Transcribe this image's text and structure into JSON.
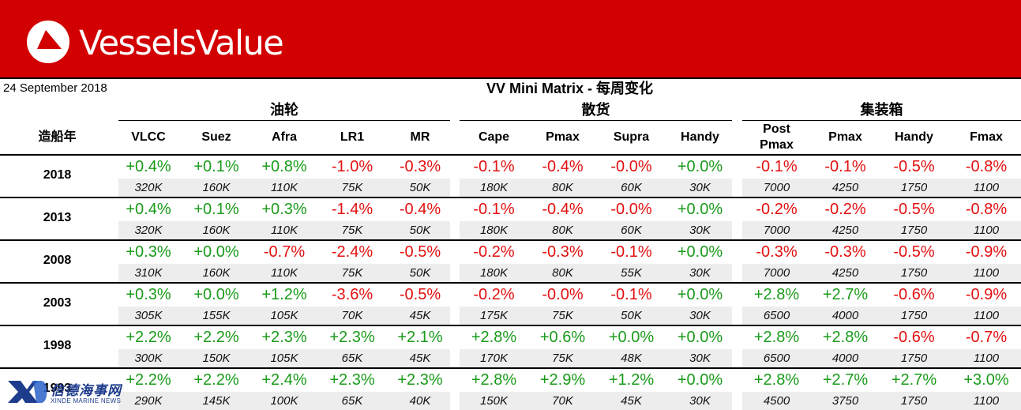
{
  "brand": {
    "name": "VesselsValue",
    "color": "#d20000"
  },
  "header": {
    "date": "24 September 2018",
    "title": "VV Mini Matrix - 每周变化"
  },
  "groups": [
    {
      "label": "油轮"
    },
    {
      "label": "散货"
    },
    {
      "label": "集装箱"
    }
  ],
  "year_header": "造船年",
  "columns": [
    "VLCC",
    "Suez",
    "Afra",
    "LR1",
    "MR",
    "Cape",
    "Pmax",
    "Supra",
    "Handy",
    "Post\nPmax",
    "Pmax",
    "Handy",
    "Fmax"
  ],
  "rows": [
    {
      "year": "2018",
      "pct": [
        "+0.4%",
        "+0.1%",
        "+0.8%",
        "-1.0%",
        "-0.3%",
        "-0.1%",
        "-0.4%",
        "-0.0%",
        "+0.0%",
        "-0.1%",
        "-0.1%",
        "-0.5%",
        "-0.8%"
      ],
      "size": [
        "320K",
        "160K",
        "110K",
        "75K",
        "50K",
        "180K",
        "80K",
        "60K",
        "30K",
        "7000",
        "4250",
        "1750",
        "1100"
      ]
    },
    {
      "year": "2013",
      "pct": [
        "+0.4%",
        "+0.1%",
        "+0.3%",
        "-1.4%",
        "-0.4%",
        "-0.1%",
        "-0.4%",
        "-0.0%",
        "+0.0%",
        "-0.2%",
        "-0.2%",
        "-0.5%",
        "-0.8%"
      ],
      "size": [
        "320K",
        "160K",
        "110K",
        "75K",
        "50K",
        "180K",
        "80K",
        "60K",
        "30K",
        "7000",
        "4250",
        "1750",
        "1100"
      ]
    },
    {
      "year": "2008",
      "pct": [
        "+0.3%",
        "+0.0%",
        "-0.7%",
        "-2.4%",
        "-0.5%",
        "-0.2%",
        "-0.3%",
        "-0.1%",
        "+0.0%",
        "-0.3%",
        "-0.3%",
        "-0.5%",
        "-0.9%"
      ],
      "size": [
        "310K",
        "160K",
        "110K",
        "75K",
        "50K",
        "180K",
        "80K",
        "55K",
        "30K",
        "7000",
        "4250",
        "1750",
        "1100"
      ]
    },
    {
      "year": "2003",
      "pct": [
        "+0.3%",
        "+0.0%",
        "+1.2%",
        "-3.6%",
        "-0.5%",
        "-0.2%",
        "-0.0%",
        "-0.1%",
        "+0.0%",
        "+2.8%",
        "+2.7%",
        "-0.6%",
        "-0.9%"
      ],
      "size": [
        "305K",
        "155K",
        "105K",
        "70K",
        "45K",
        "175K",
        "75K",
        "50K",
        "30K",
        "6500",
        "4000",
        "1750",
        "1100"
      ]
    },
    {
      "year": "1998",
      "pct": [
        "+2.2%",
        "+2.2%",
        "+2.3%",
        "+2.3%",
        "+2.1%",
        "+2.8%",
        "+0.6%",
        "+0.0%",
        "+0.0%",
        "+2.8%",
        "+2.8%",
        "-0.6%",
        "-0.7%"
      ],
      "size": [
        "300K",
        "150K",
        "105K",
        "65K",
        "45K",
        "170K",
        "75K",
        "48K",
        "30K",
        "6500",
        "4000",
        "1750",
        "1100"
      ]
    },
    {
      "year": "1993",
      "pct": [
        "+2.2%",
        "+2.2%",
        "+2.4%",
        "+2.3%",
        "+2.3%",
        "+2.8%",
        "+2.9%",
        "+1.2%",
        "+0.0%",
        "+2.8%",
        "+2.7%",
        "+2.7%",
        "+3.0%"
      ],
      "size": [
        "290K",
        "145K",
        "100K",
        "65K",
        "40K",
        "150K",
        "70K",
        "45K",
        "30K",
        "4500",
        "3750",
        "1750",
        "1100"
      ]
    }
  ],
  "colors": {
    "positive": "#1a9b1a",
    "negative": "#e31010",
    "shade": "#ededed"
  },
  "watermark": {
    "cn": "信德海事网",
    "en": "XINDE MARINE NEWS",
    "mark": "XD"
  }
}
